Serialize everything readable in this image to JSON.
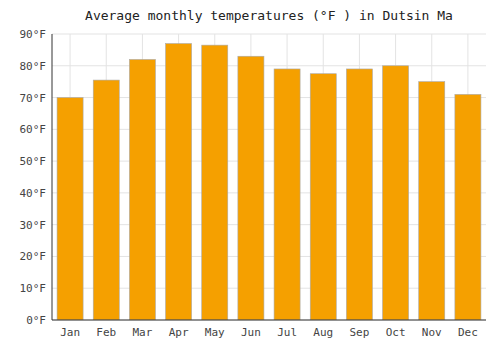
{
  "chart_data": {
    "type": "bar",
    "title": "Average monthly temperatures (°F ) in Dutsin Ma",
    "categories": [
      "Jan",
      "Feb",
      "Mar",
      "Apr",
      "May",
      "Jun",
      "Jul",
      "Aug",
      "Sep",
      "Oct",
      "Nov",
      "Dec"
    ],
    "values": [
      70,
      75.5,
      82,
      87,
      86.5,
      83,
      79,
      77.5,
      79,
      80,
      75,
      71
    ],
    "color": "#F5A000",
    "ylim": [
      0,
      90
    ],
    "yticks": [
      {
        "value": 0,
        "label": "0°F"
      },
      {
        "value": 10,
        "label": "10°F"
      },
      {
        "value": 20,
        "label": "20°F"
      },
      {
        "value": 30,
        "label": "30°F"
      },
      {
        "value": 40,
        "label": "40°F"
      },
      {
        "value": 50,
        "label": "50°F"
      },
      {
        "value": 60,
        "label": "60°F"
      },
      {
        "value": 70,
        "label": "70°F"
      },
      {
        "value": 80,
        "label": "80°F"
      },
      {
        "value": 90,
        "label": "90°F"
      }
    ],
    "grid": true
  }
}
